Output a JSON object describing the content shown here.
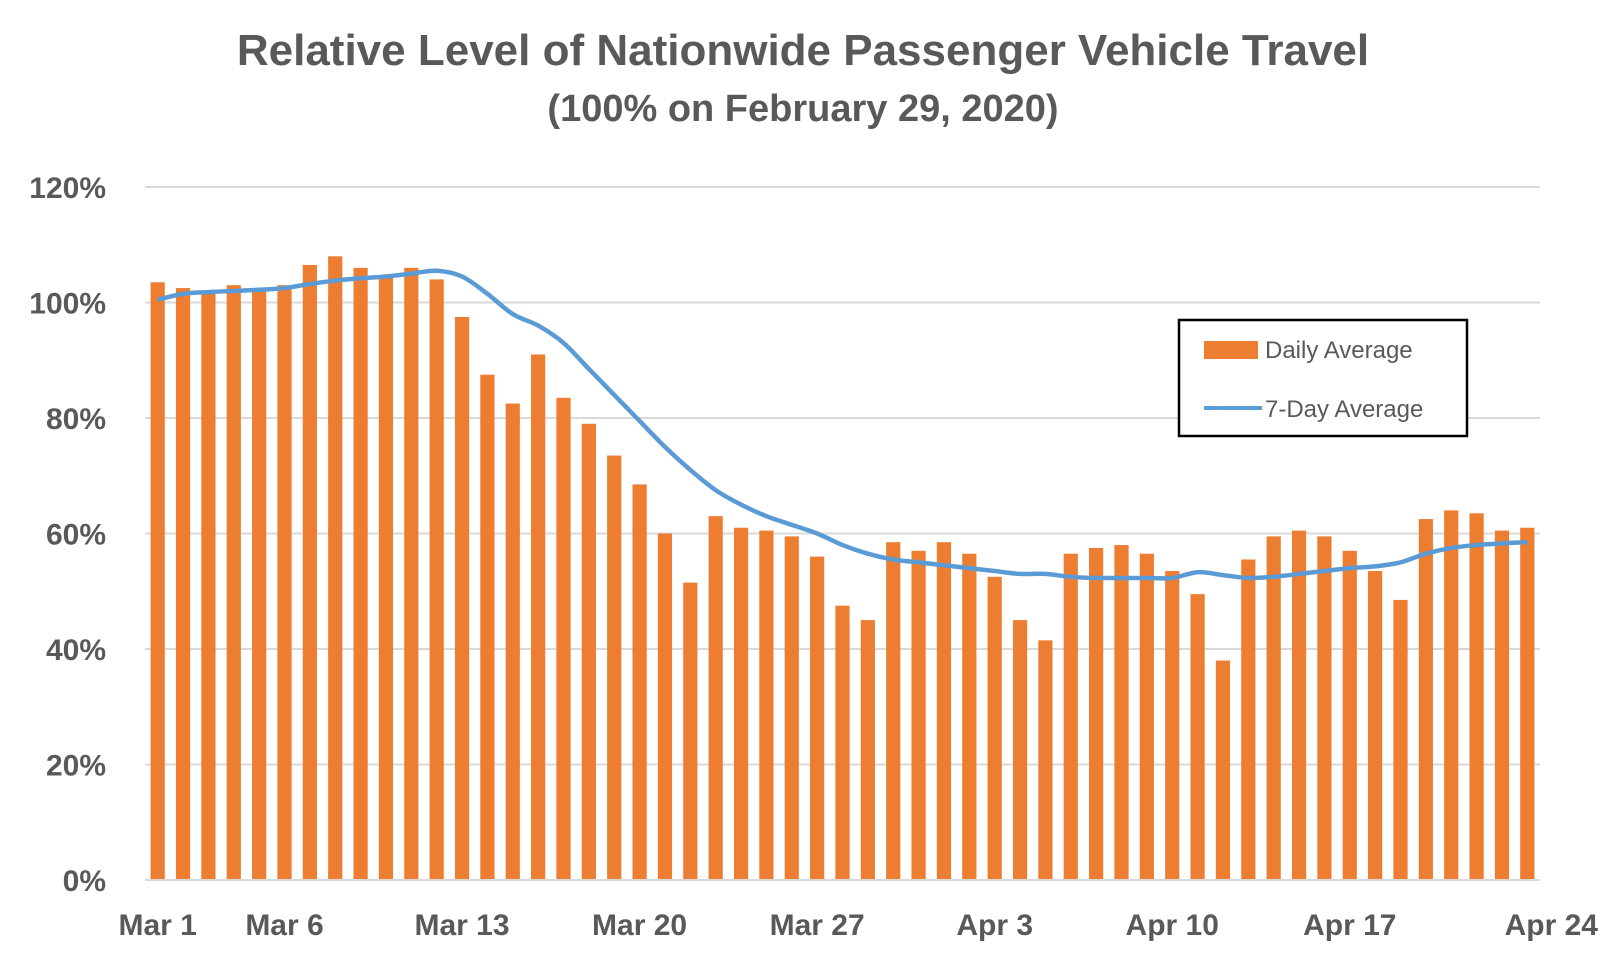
{
  "chart_data": {
    "type": "bar",
    "title": "Relative Level of Nationwide Passenger Vehicle Travel",
    "subtitle": "(100% on February 29, 2020)",
    "xlabel": "",
    "ylabel": "",
    "ylim": [
      0,
      120
    ],
    "y_ticks": [
      "0%",
      "20%",
      "40%",
      "60%",
      "80%",
      "100%",
      "120%"
    ],
    "x_ticks": [
      {
        "label": "Mar 1",
        "day": "Mar 1"
      },
      {
        "label": "Mar 6",
        "day": "Mar 6"
      },
      {
        "label": "Mar 13",
        "day": "Mar 13"
      },
      {
        "label": "Mar 20",
        "day": "Mar 20"
      },
      {
        "label": "Mar 27",
        "day": "Mar 27"
      },
      {
        "label": "Apr 3",
        "day": "Apr 3"
      },
      {
        "label": "Apr 10",
        "day": "Apr 10"
      },
      {
        "label": "Apr 17",
        "day": "Apr 17"
      },
      {
        "label": "Apr 24",
        "day": "Apr 24"
      }
    ],
    "grid": true,
    "legend_position": "right",
    "categories": [
      "Mar 1",
      "Mar 2",
      "Mar 3",
      "Mar 4",
      "Mar 5",
      "Mar 6",
      "Mar 7",
      "Mar 8",
      "Mar 9",
      "Mar 10",
      "Mar 11",
      "Mar 12",
      "Mar 13",
      "Mar 14",
      "Mar 15",
      "Mar 16",
      "Mar 17",
      "Mar 18",
      "Mar 19",
      "Mar 20",
      "Mar 21",
      "Mar 22",
      "Mar 23",
      "Mar 24",
      "Mar 25",
      "Mar 26",
      "Mar 27",
      "Mar 28",
      "Mar 29",
      "Mar 30",
      "Mar 31",
      "Apr 1",
      "Apr 2",
      "Apr 3",
      "Apr 4",
      "Apr 5",
      "Apr 6",
      "Apr 7",
      "Apr 8",
      "Apr 9",
      "Apr 10",
      "Apr 11",
      "Apr 12",
      "Apr 13",
      "Apr 14",
      "Apr 15",
      "Apr 16",
      "Apr 17",
      "Apr 18",
      "Apr 19",
      "Apr 20",
      "Apr 21",
      "Apr 22",
      "Apr 23",
      "Apr 24"
    ],
    "series": [
      {
        "name": "Daily Average",
        "type": "bar",
        "color": "#ED7D31",
        "values": [
          103.5,
          102.5,
          102,
          103,
          102.5,
          103,
          106.5,
          108,
          106,
          104.5,
          106,
          104,
          97.5,
          87.5,
          82.5,
          91,
          83.5,
          79,
          73.5,
          68.5,
          60,
          51.5,
          63,
          61,
          60.5,
          59.5,
          56,
          47.5,
          45,
          58.5,
          57,
          58.5,
          56.5,
          52.5,
          45,
          41.5,
          56.5,
          57.5,
          58,
          56.5,
          53.5,
          49.5,
          38,
          55.5,
          59.5,
          60.5,
          59.5,
          57,
          53.5,
          48.5,
          62.5,
          64,
          63.5,
          60.5,
          61
        ]
      },
      {
        "name": "7-Day Average",
        "type": "line",
        "color": "#5B9BD5",
        "values": [
          100.5,
          101.5,
          101.8,
          102,
          102.2,
          102.5,
          103.2,
          103.8,
          104.2,
          104.5,
          105,
          105.5,
          104.5,
          101.5,
          98,
          96,
          93,
          88.5,
          84,
          79.5,
          75,
          71,
          67.5,
          65,
          63,
          61.5,
          60,
          58,
          56.5,
          55.5,
          55,
          54.5,
          54,
          53.5,
          53,
          53,
          52.5,
          52.3,
          52.3,
          52.3,
          52.3,
          53.3,
          52.8,
          52.3,
          52.5,
          53,
          53.5,
          54,
          54.3,
          55,
          56.5,
          57.5,
          58,
          58.3,
          58.5
        ]
      }
    ]
  }
}
